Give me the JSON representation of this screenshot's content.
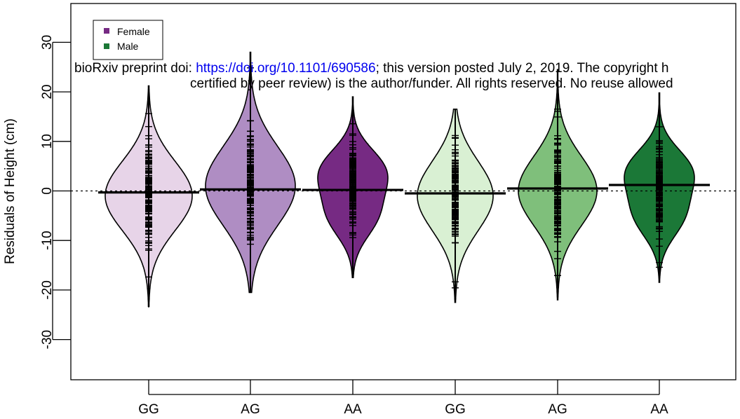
{
  "chart_data": {
    "type": "beanplot",
    "title": "",
    "xlabel": "",
    "ylabel": "Residuals of Height (cm)",
    "ylim": [
      -38,
      38
    ],
    "yticks": [
      -30,
      -20,
      -10,
      0,
      10,
      20,
      30
    ],
    "reference_line": 0,
    "categories": [
      "GG",
      "AG",
      "AA",
      "GG",
      "AG",
      "AA"
    ],
    "groups": [
      {
        "genotype": "GG",
        "sex": "Female",
        "color": "#e7d4e8",
        "mean": -0.3,
        "min": -23.5,
        "max": 21.2
      },
      {
        "genotype": "AG",
        "sex": "Female",
        "color": "#af8dc3",
        "mean": 0.3,
        "min": -20.5,
        "max": 28.0
      },
      {
        "genotype": "AA",
        "sex": "Female",
        "color": "#762a83",
        "mean": 0.2,
        "min": -17.5,
        "max": 19.0
      },
      {
        "genotype": "GG",
        "sex": "Male",
        "color": "#d9f0d3",
        "mean": -0.5,
        "min": -22.5,
        "max": 16.5
      },
      {
        "genotype": "AG",
        "sex": "Male",
        "color": "#7fbf7b",
        "mean": 0.5,
        "min": -22.0,
        "max": 24.5
      },
      {
        "genotype": "AA",
        "sex": "Male",
        "color": "#1b7837",
        "mean": 1.2,
        "min": -18.5,
        "max": 19.8
      }
    ],
    "legend": [
      {
        "label": "Female",
        "color": "#762a83"
      },
      {
        "label": "Male",
        "color": "#1b7837"
      }
    ]
  },
  "overlay": {
    "line1_prefix": "bioRxiv preprint doi: ",
    "line1_link": "https://doi.org/10.1101/690586",
    "line1_suffix": "; this version posted July 2, 2019. The copyright h",
    "line2": "certified by peer review) is the author/funder. All rights reserved. No reuse allowed"
  }
}
